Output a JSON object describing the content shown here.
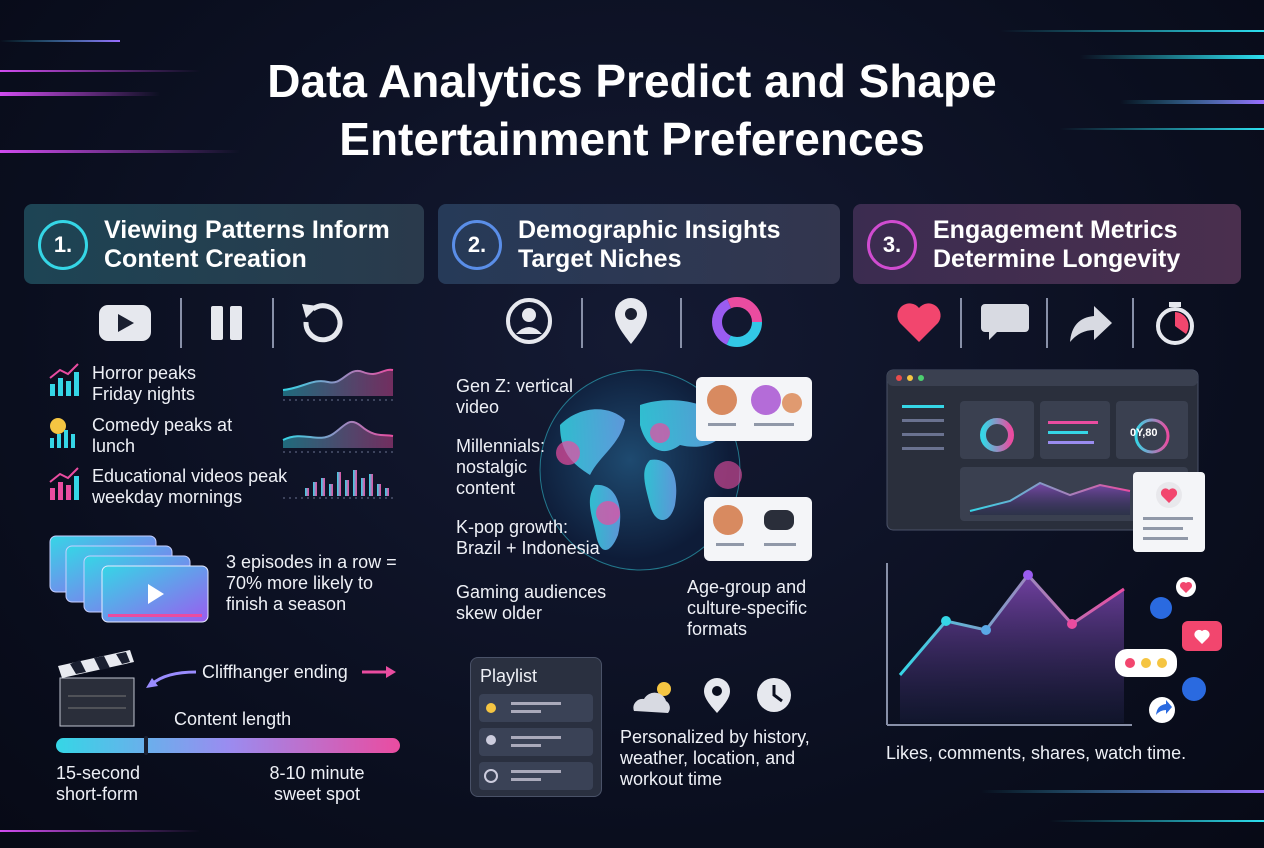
{
  "title_lines": [
    "Data Analytics Predict and Shape",
    "Entertainment Preferences"
  ],
  "sections": [
    {
      "number": "1.",
      "heading": "Viewing Patterns Inform Content Creation",
      "patterns": [
        "Horror peaks Friday nights",
        "Comedy peaks at lunch",
        "Educational videos peak weekday mornings"
      ],
      "binge": "3 episodes in a row = 70% more likely to finish a season",
      "cliffhanger": "Cliffhanger ending",
      "length_label": "Content length",
      "length_min": "15-second short-form",
      "length_max": "8-10 minute sweet spot"
    },
    {
      "number": "2.",
      "heading": "Demographic Insights Target Niches",
      "demographics": [
        "Gen Z: vertical video",
        "Millennials: nostalgic content",
        "K-pop growth: Brazil + Indonesia",
        "Gaming audiences skew older"
      ],
      "formats": "Age-group and culture-specific formats",
      "playlist_title": "Playlist",
      "personalized": "Personalized by history, weather, location, and workout time"
    },
    {
      "number": "3.",
      "heading": "Engagement Metrics Determine Longevity",
      "gauge_label": "0Y,80",
      "caption": "Likes, comments, shares, watch time."
    }
  ]
}
